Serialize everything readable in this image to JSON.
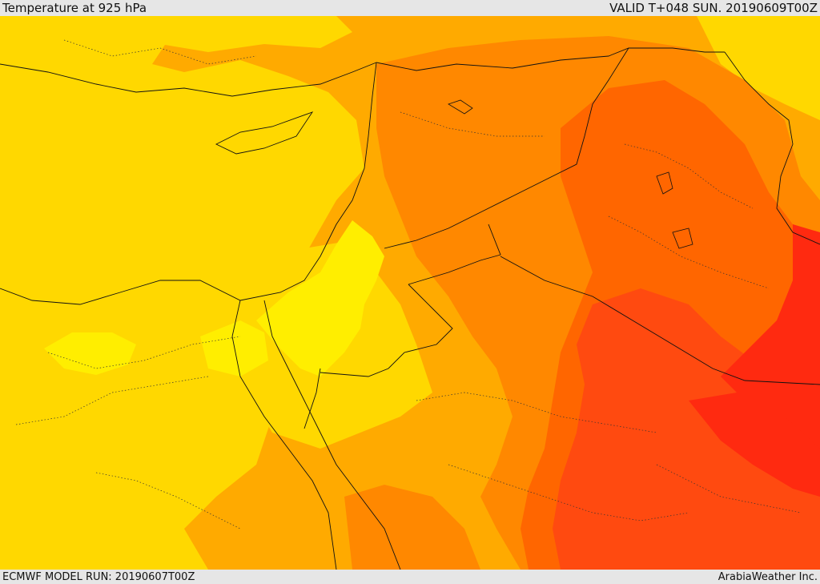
{
  "header": {
    "title": "Temperature at 925 hPa",
    "valid_time": "VALID T+048 SUN. 20190609T00Z"
  },
  "footer": {
    "model_run": "ECMWF MODEL RUN: 20190607T00Z",
    "credit": "ArabiaWeather Inc."
  },
  "map": {
    "variable": "temperature",
    "level": "925 hPa",
    "colors": {
      "band_1": "#ffee00",
      "band_2": "#ffd800",
      "band_3": "#ffaa00",
      "band_4": "#ff8800",
      "band_5": "#ff6600",
      "band_6": "#ff4a10",
      "band_7": "#ff2a10"
    }
  }
}
